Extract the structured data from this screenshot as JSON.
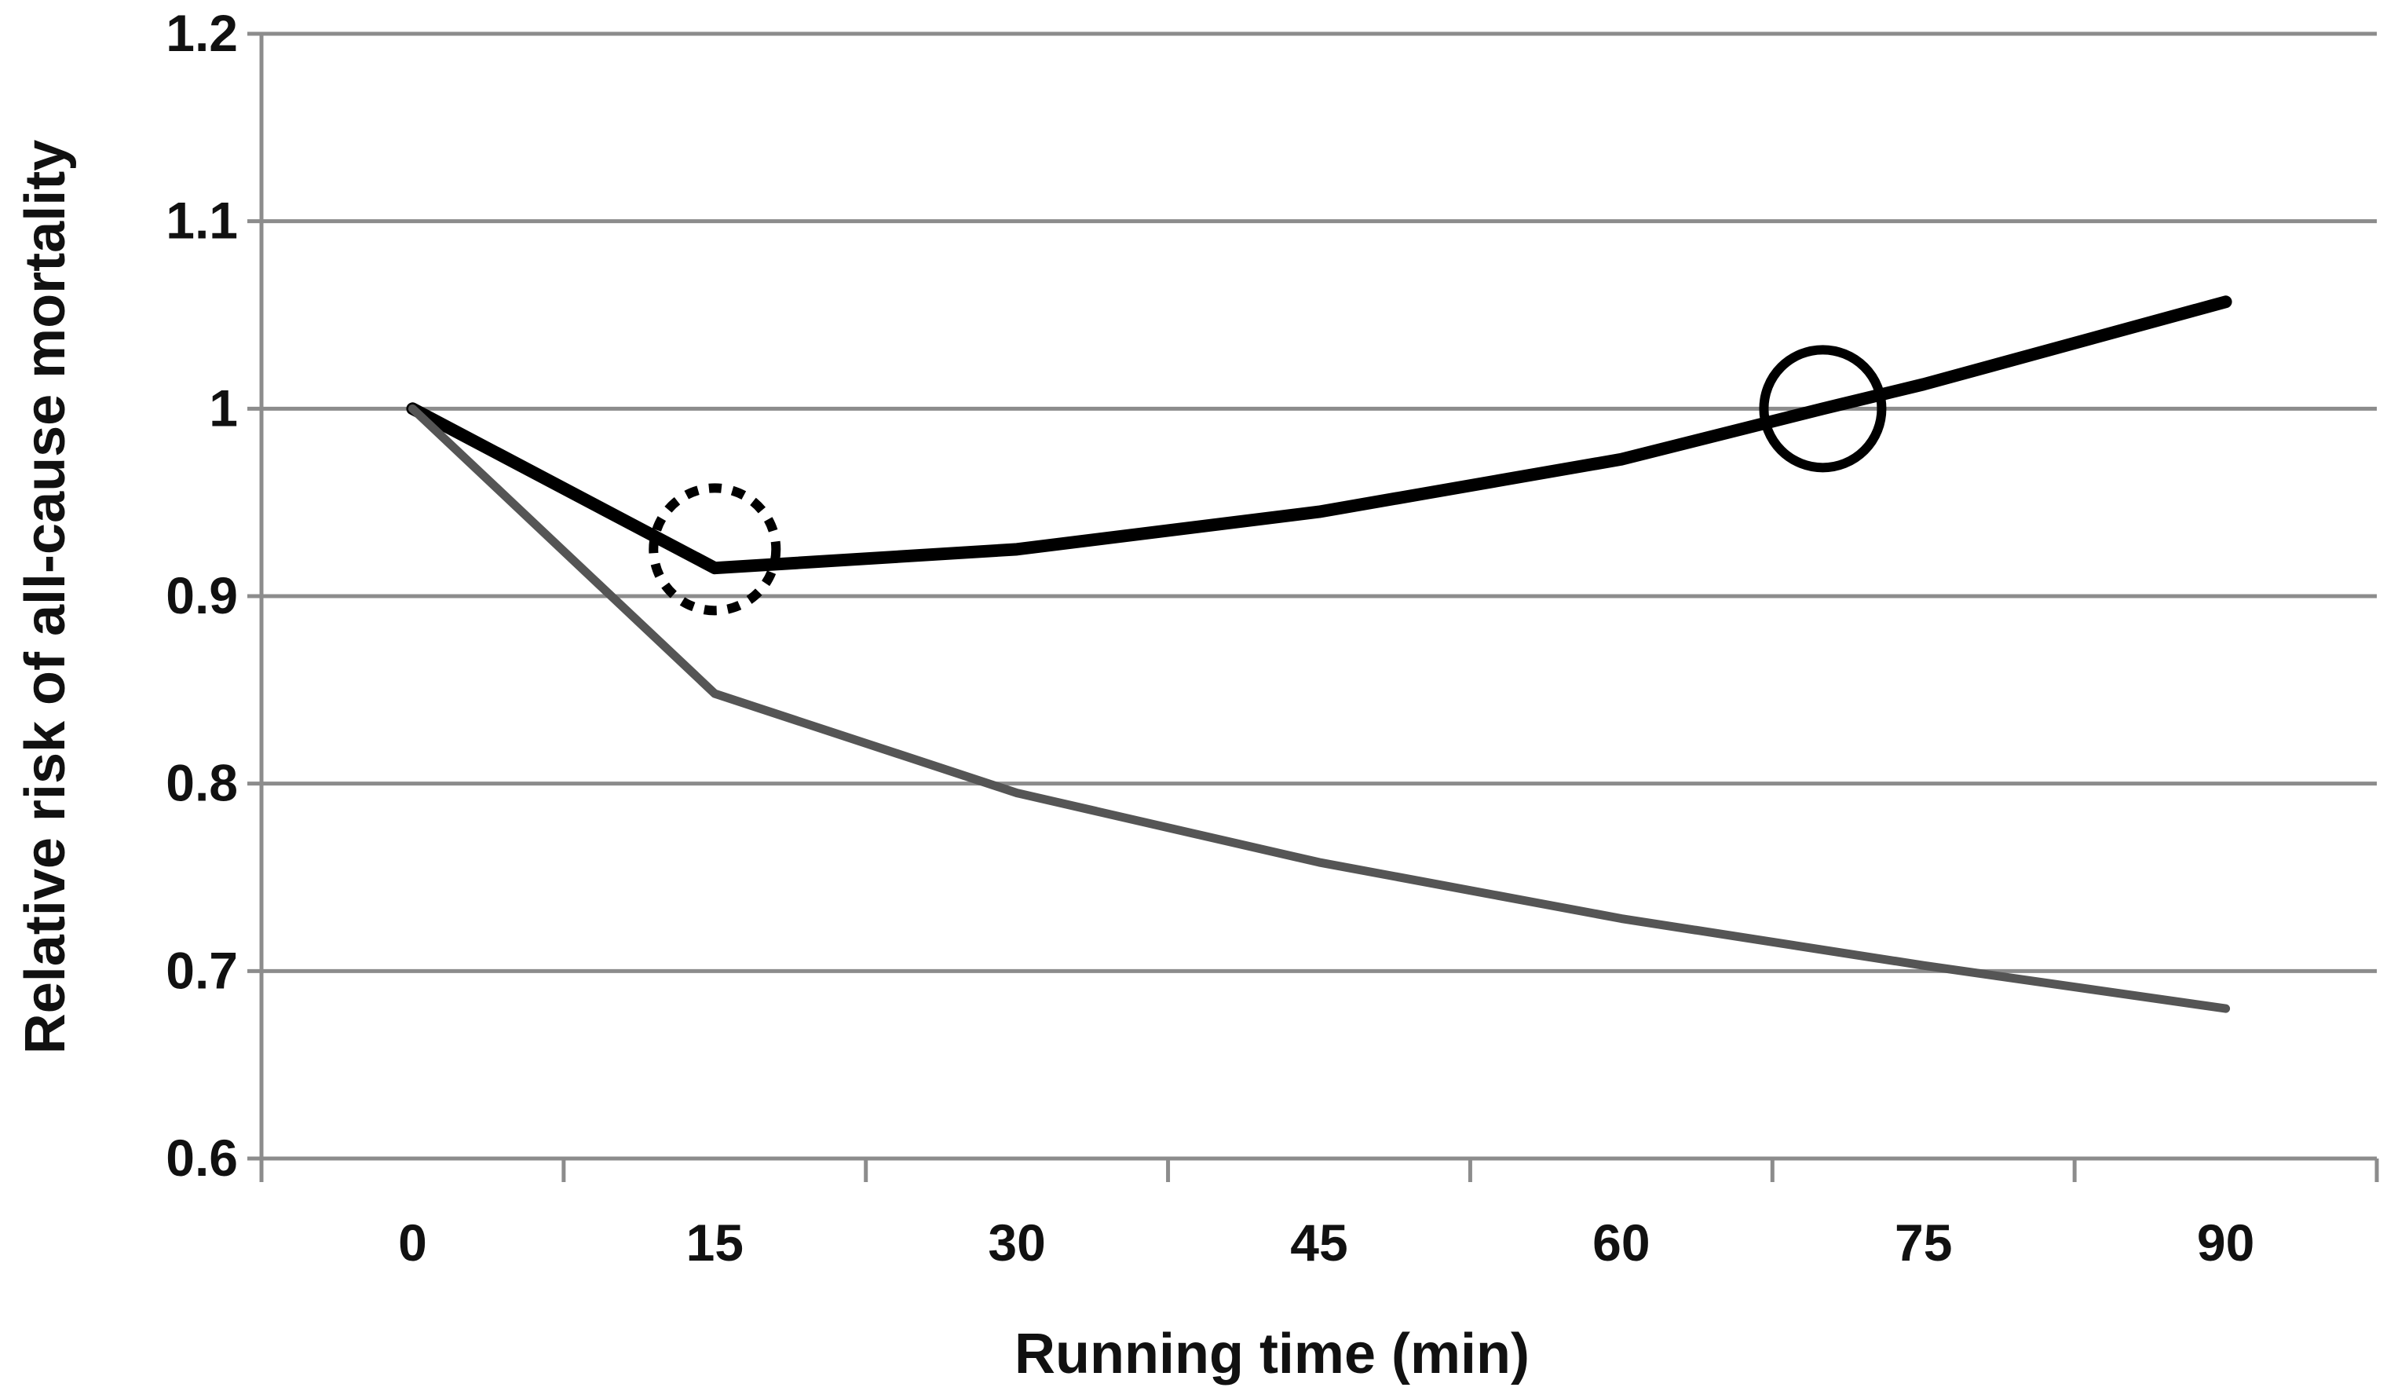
{
  "chart_data": {
    "type": "line",
    "title": "",
    "xlabel": "Running time (min)",
    "ylabel": "Relative risk of all-cause  mortality",
    "x_ticks": [
      "0",
      "15",
      "30",
      "45",
      "60",
      "75",
      "90"
    ],
    "y_ticks": [
      "0.6",
      "0.7",
      "0.8",
      "0.9",
      "1",
      "1.1",
      "1.2"
    ],
    "xlim": [
      -7.5,
      97.5
    ],
    "ylim": [
      0.6,
      1.2
    ],
    "grid": true,
    "legend": "none",
    "series": [
      {
        "name": "black-curve",
        "color": "#000000",
        "x": [
          0,
          15,
          30,
          45,
          60,
          70,
          75,
          90
        ],
        "y": [
          1.0,
          0.915,
          0.925,
          0.945,
          0.973,
          1.0,
          1.013,
          1.057
        ]
      },
      {
        "name": "gray-curve",
        "color": "#555555",
        "x": [
          0,
          15,
          30,
          45,
          60,
          75,
          90
        ],
        "y": [
          1.0,
          0.848,
          0.795,
          0.758,
          0.728,
          0.703,
          0.68
        ]
      }
    ],
    "annotations": [
      {
        "name": "dotted-circle",
        "style": "dotted",
        "x": 15,
        "y": 0.925
      },
      {
        "name": "solid-circle",
        "style": "solid",
        "x": 70,
        "y": 1.0
      }
    ]
  }
}
